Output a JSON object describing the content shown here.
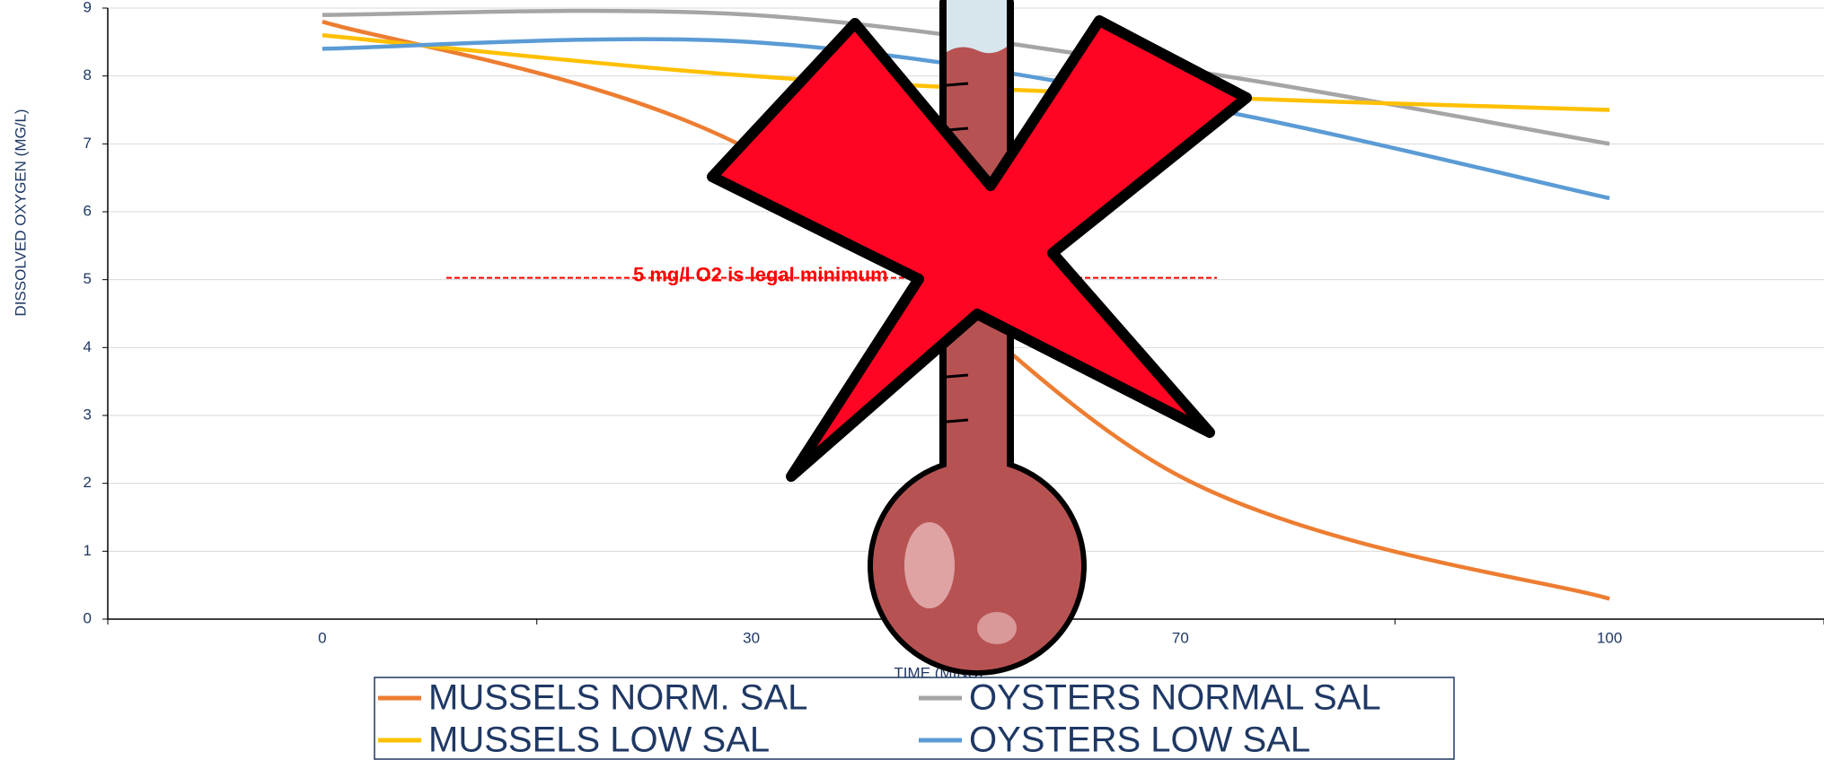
{
  "chart_data": {
    "type": "line",
    "x_label": "TIME  (MINS)",
    "y_label": "DISSOLVED OXYGEN (MG/L)",
    "categories": [
      "0",
      "30",
      "70",
      "100"
    ],
    "series": [
      {
        "name": "MUSSELS NORM. SAL",
        "color": "#ed7d31",
        "values": [
          8.8,
          6.9,
          2.1,
          0.3
        ]
      },
      {
        "name": "OYSTERS NORMAL SAL",
        "color": "#a5a5a5",
        "values": [
          8.9,
          8.9,
          8.1,
          7.0
        ]
      },
      {
        "name": "MUSSELS LOW SAL",
        "color": "#ffc000",
        "values": [
          8.6,
          8.0,
          7.7,
          7.5
        ]
      },
      {
        "name": "OYSTERS LOW SAL",
        "color": "#5b9bd5",
        "values": [
          8.4,
          8.5,
          7.6,
          6.2
        ]
      }
    ],
    "ylim": [
      0,
      9
    ],
    "yticks": [
      0,
      1,
      2,
      3,
      4,
      5,
      6,
      7,
      8,
      9
    ],
    "grid": true,
    "threshold": {
      "value": 5,
      "label": "5 mg/l O2 is legal minimum",
      "color": "#ff0000"
    },
    "legend": "bottom",
    "smooth": true
  }
}
